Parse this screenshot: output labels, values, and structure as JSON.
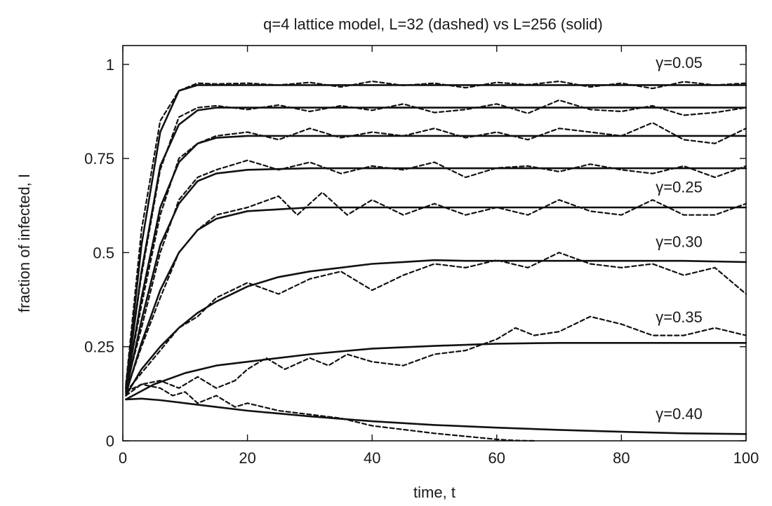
{
  "chart_data": {
    "type": "line",
    "title": "q=4 lattice model, L=32 (dashed) vs L=256 (solid)",
    "xlabel": "time, t",
    "ylabel": "fraction of infected, I",
    "xlim": [
      0,
      100
    ],
    "ylim": [
      0,
      1.05
    ],
    "xticks": [
      0,
      20,
      40,
      60,
      80,
      100
    ],
    "xtick_labels": [
      "0",
      "20",
      "40",
      "60",
      "80",
      "100"
    ],
    "yticks": [
      0,
      0.25,
      0.5,
      0.75,
      1
    ],
    "ytick_labels": [
      "0",
      "0.25",
      "0.5",
      "0.75",
      "1"
    ],
    "grid": false,
    "line_color": "#111111",
    "styles": {
      "solid": "L=256",
      "dashed": "L=32"
    },
    "annotations": [
      {
        "text": "γ=0.05",
        "x": 85.5,
        "y": 0.99
      },
      {
        "text": "γ=0.25",
        "x": 85.5,
        "y": 0.66
      },
      {
        "text": "γ=0.30",
        "x": 85.5,
        "y": 0.515
      },
      {
        "text": "γ=0.35",
        "x": 85.5,
        "y": 0.315
      },
      {
        "text": "γ=0.40",
        "x": 85.5,
        "y": 0.058
      }
    ],
    "series": [
      {
        "style": "solid",
        "x": [
          0.5,
          3,
          6,
          9,
          12,
          15,
          20,
          30,
          40,
          50,
          60,
          70,
          80,
          90,
          100
        ],
        "y": [
          0.14,
          0.52,
          0.82,
          0.93,
          0.945,
          0.945,
          0.945,
          0.945,
          0.945,
          0.945,
          0.945,
          0.945,
          0.945,
          0.945,
          0.945
        ]
      },
      {
        "style": "dashed",
        "x": [
          0.5,
          3,
          6,
          9,
          12,
          15,
          20,
          25,
          30,
          35,
          40,
          45,
          50,
          55,
          60,
          65,
          70,
          75,
          80,
          85,
          90,
          95,
          100
        ],
        "y": [
          0.15,
          0.56,
          0.85,
          0.93,
          0.95,
          0.948,
          0.95,
          0.945,
          0.952,
          0.94,
          0.955,
          0.944,
          0.95,
          0.938,
          0.952,
          0.946,
          0.955,
          0.94,
          0.95,
          0.936,
          0.954,
          0.945,
          0.95
        ]
      },
      {
        "style": "solid",
        "x": [
          0.5,
          3,
          6,
          9,
          12,
          15,
          20,
          30,
          40,
          50,
          60,
          70,
          80,
          90,
          100
        ],
        "y": [
          0.14,
          0.45,
          0.73,
          0.84,
          0.878,
          0.885,
          0.885,
          0.885,
          0.885,
          0.885,
          0.885,
          0.885,
          0.885,
          0.885,
          0.885
        ]
      },
      {
        "style": "dashed",
        "x": [
          0.5,
          3,
          6,
          9,
          12,
          15,
          20,
          25,
          30,
          35,
          40,
          45,
          50,
          55,
          60,
          65,
          70,
          75,
          80,
          85,
          90,
          95,
          100
        ],
        "y": [
          0.15,
          0.44,
          0.72,
          0.86,
          0.885,
          0.89,
          0.88,
          0.892,
          0.875,
          0.89,
          0.878,
          0.895,
          0.872,
          0.88,
          0.895,
          0.87,
          0.905,
          0.88,
          0.875,
          0.89,
          0.865,
          0.872,
          0.885
        ]
      },
      {
        "style": "solid",
        "x": [
          0.5,
          3,
          6,
          9,
          12,
          15,
          20,
          30,
          40,
          50,
          60,
          70,
          80,
          90,
          100
        ],
        "y": [
          0.135,
          0.38,
          0.62,
          0.74,
          0.79,
          0.805,
          0.81,
          0.81,
          0.81,
          0.81,
          0.81,
          0.81,
          0.81,
          0.81,
          0.81
        ]
      },
      {
        "style": "dashed",
        "x": [
          0.5,
          3,
          6,
          9,
          12,
          15,
          20,
          25,
          30,
          35,
          40,
          45,
          50,
          55,
          60,
          65,
          70,
          75,
          80,
          85,
          90,
          95,
          100
        ],
        "y": [
          0.145,
          0.36,
          0.6,
          0.75,
          0.79,
          0.81,
          0.82,
          0.8,
          0.83,
          0.805,
          0.82,
          0.81,
          0.83,
          0.805,
          0.82,
          0.8,
          0.83,
          0.82,
          0.81,
          0.845,
          0.8,
          0.79,
          0.83
        ]
      },
      {
        "style": "solid",
        "x": [
          0.5,
          3,
          6,
          9,
          12,
          15,
          20,
          30,
          40,
          50,
          60,
          70,
          80,
          90,
          100
        ],
        "y": [
          0.13,
          0.32,
          0.52,
          0.63,
          0.69,
          0.71,
          0.72,
          0.724,
          0.724,
          0.724,
          0.724,
          0.724,
          0.724,
          0.724,
          0.724
        ]
      },
      {
        "style": "dashed",
        "x": [
          0.5,
          3,
          6,
          9,
          12,
          15,
          20,
          25,
          30,
          35,
          40,
          45,
          50,
          55,
          60,
          65,
          70,
          75,
          80,
          85,
          90,
          95,
          100
        ],
        "y": [
          0.14,
          0.3,
          0.5,
          0.64,
          0.7,
          0.72,
          0.745,
          0.72,
          0.74,
          0.71,
          0.73,
          0.72,
          0.74,
          0.7,
          0.725,
          0.73,
          0.715,
          0.735,
          0.72,
          0.71,
          0.73,
          0.7,
          0.73
        ]
      },
      {
        "style": "solid",
        "x": [
          0.5,
          3,
          6,
          9,
          12,
          15,
          20,
          25,
          30,
          40,
          50,
          60,
          70,
          80,
          90,
          100
        ],
        "y": [
          0.125,
          0.26,
          0.4,
          0.5,
          0.56,
          0.59,
          0.61,
          0.615,
          0.62,
          0.62,
          0.62,
          0.62,
          0.62,
          0.62,
          0.62,
          0.62
        ]
      },
      {
        "style": "dashed",
        "x": [
          0.5,
          3,
          6,
          9,
          12,
          15,
          20,
          25,
          28,
          32,
          36,
          40,
          45,
          50,
          55,
          60,
          65,
          70,
          75,
          80,
          85,
          90,
          95,
          100
        ],
        "y": [
          0.13,
          0.25,
          0.38,
          0.5,
          0.56,
          0.6,
          0.62,
          0.65,
          0.6,
          0.66,
          0.6,
          0.64,
          0.6,
          0.63,
          0.6,
          0.62,
          0.6,
          0.64,
          0.61,
          0.6,
          0.64,
          0.6,
          0.6,
          0.63
        ]
      },
      {
        "style": "solid",
        "x": [
          0.5,
          3,
          6,
          9,
          12,
          15,
          20,
          25,
          30,
          35,
          40,
          45,
          50,
          55,
          60,
          70,
          80,
          90,
          100
        ],
        "y": [
          0.12,
          0.19,
          0.25,
          0.3,
          0.34,
          0.37,
          0.41,
          0.435,
          0.45,
          0.46,
          0.47,
          0.475,
          0.48,
          0.478,
          0.478,
          0.478,
          0.478,
          0.478,
          0.475
        ]
      },
      {
        "style": "dashed",
        "x": [
          0.5,
          3,
          6,
          9,
          12,
          15,
          20,
          25,
          30,
          35,
          40,
          45,
          50,
          55,
          60,
          65,
          70,
          75,
          80,
          85,
          90,
          95,
          100
        ],
        "y": [
          0.13,
          0.18,
          0.24,
          0.3,
          0.33,
          0.38,
          0.42,
          0.39,
          0.43,
          0.45,
          0.4,
          0.44,
          0.47,
          0.46,
          0.48,
          0.46,
          0.5,
          0.47,
          0.46,
          0.47,
          0.44,
          0.46,
          0.39
        ]
      },
      {
        "style": "solid",
        "x": [
          0.5,
          5,
          10,
          15,
          20,
          25,
          30,
          40,
          50,
          60,
          70,
          80,
          90,
          100
        ],
        "y": [
          0.11,
          0.15,
          0.18,
          0.2,
          0.21,
          0.22,
          0.23,
          0.245,
          0.252,
          0.258,
          0.26,
          0.26,
          0.26,
          0.26
        ]
      },
      {
        "style": "dashed",
        "x": [
          0.5,
          3,
          6,
          9,
          12,
          15,
          18,
          20,
          23,
          26,
          30,
          33,
          36,
          40,
          45,
          50,
          55,
          60,
          63,
          66,
          70,
          75,
          80,
          85,
          90,
          95,
          100
        ],
        "y": [
          0.12,
          0.15,
          0.16,
          0.14,
          0.17,
          0.14,
          0.16,
          0.19,
          0.22,
          0.19,
          0.22,
          0.2,
          0.23,
          0.21,
          0.2,
          0.23,
          0.24,
          0.27,
          0.3,
          0.28,
          0.29,
          0.33,
          0.31,
          0.28,
          0.28,
          0.3,
          0.28
        ]
      },
      {
        "style": "solid",
        "x": [
          0.5,
          3,
          6,
          10,
          15,
          20,
          30,
          40,
          50,
          60,
          70,
          80,
          90,
          100
        ],
        "y": [
          0.11,
          0.112,
          0.108,
          0.1,
          0.09,
          0.08,
          0.065,
          0.052,
          0.042,
          0.035,
          0.029,
          0.024,
          0.02,
          0.018
        ]
      },
      {
        "style": "dashed",
        "x": [
          0.5,
          3,
          6,
          8,
          10,
          12,
          15,
          18,
          20,
          25,
          30,
          35,
          40,
          45,
          50,
          55,
          60,
          63,
          66
        ],
        "y": [
          0.13,
          0.15,
          0.14,
          0.12,
          0.13,
          0.1,
          0.12,
          0.09,
          0.1,
          0.08,
          0.07,
          0.06,
          0.04,
          0.03,
          0.02,
          0.012,
          0.004,
          0.001,
          0.0
        ]
      }
    ]
  }
}
